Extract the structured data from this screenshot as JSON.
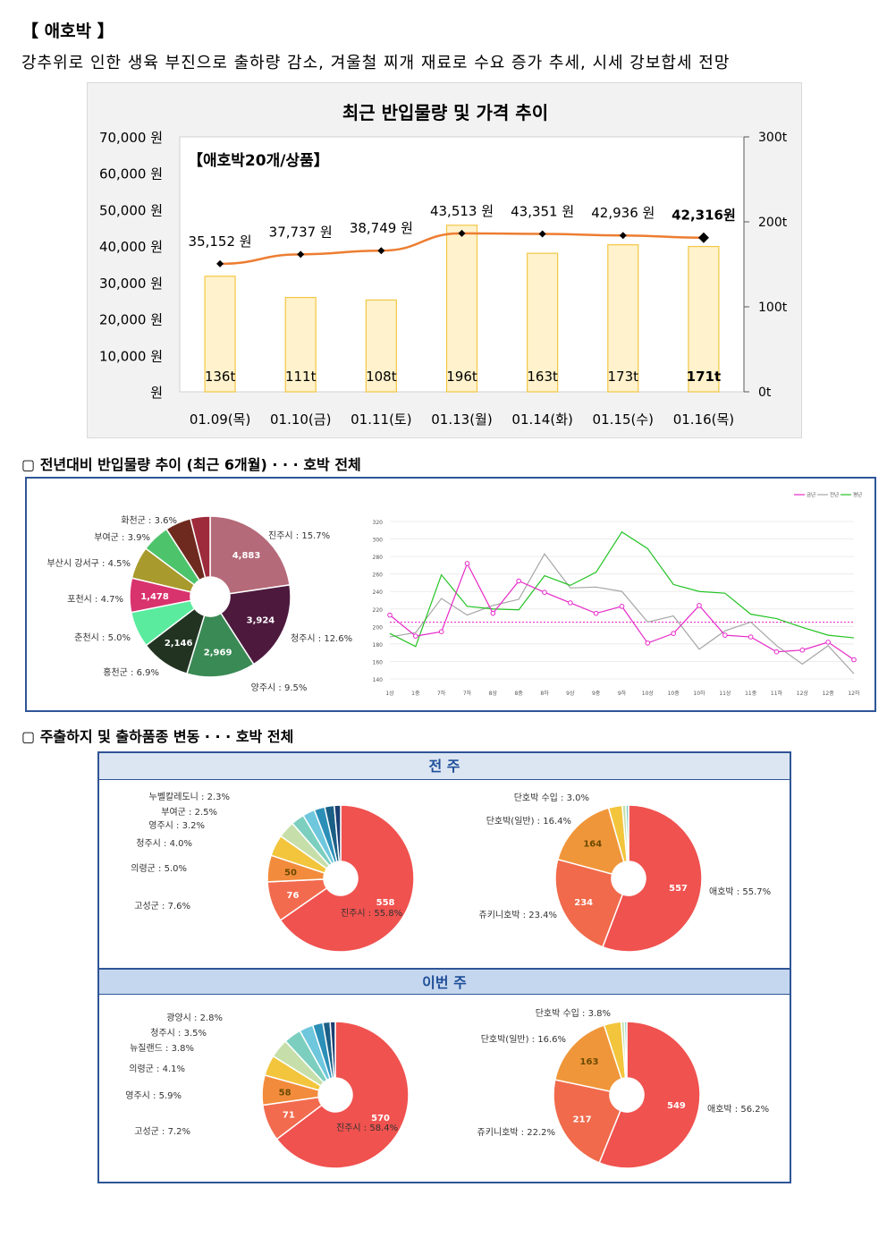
{
  "header": {
    "title": "【 애호박 】",
    "subtitle": "강추위로 인한 생육 부진으로 출하량 감소, 겨울철 찌개 재료로 수요 증가 추세, 시세 강보합세 전망"
  },
  "sections": {
    "trend_heading": "▢ 전년대비 반입물량 추이 (최근 6개월) · · · 호박 전체",
    "share_heading": "▢ 주출하지 및 출하품종 변동 · · · 호박 전체",
    "prev_week_label": "전 주",
    "this_week_label": "이번 주"
  },
  "chart_data": [
    {
      "type": "bar",
      "title": "최근 반입물량 및 가격 추이",
      "inset_label": "【애호박20개/상품】",
      "categories": [
        "01.09(목)",
        "01.10(금)",
        "01.11(토)",
        "01.13(월)",
        "01.14(화)",
        "01.15(수)",
        "01.16(목)"
      ],
      "series": [
        {
          "name": "",
          "axis": "right",
          "values": [
            136,
            111,
            108,
            196,
            163,
            173,
            171
          ],
          "labels": [
            "136t",
            "111t",
            "108t",
            "196t",
            "163t",
            "173t",
            "171t"
          ],
          "color": "#fff2cc",
          "stroke": "#f2c744"
        },
        {
          "name": "",
          "axis": "left",
          "type": "line",
          "values": [
            35152,
            37737,
            38749,
            43513,
            43351,
            42936,
            42316
          ],
          "labels": [
            "35,152 원",
            "37,737 원",
            "38,749 원",
            "43,513 원",
            "43,351 원",
            "42,936 원",
            "42,316원"
          ],
          "color": "#ed7d31"
        }
      ],
      "yticks_left": [
        "70,000 원",
        "60,000 원",
        "50,000 원",
        "40,000 원",
        "30,000 원",
        "20,000 원",
        "10,000 원",
        "원"
      ],
      "yticks_right": [
        "300t",
        "200t",
        "100t",
        "0t"
      ],
      "ylim_left": [
        0,
        70000
      ],
      "ylim_right": [
        0,
        300
      ]
    },
    {
      "type": "pie",
      "donut": true,
      "slices": [
        {
          "label": "진주시 : 15.7%",
          "value": 4883,
          "value_label": "4,883",
          "color": "#b56a79"
        },
        {
          "label": "청주시 : 12.6%",
          "value": 3924,
          "value_label": "3,924",
          "color": "#4d1a3e"
        },
        {
          "label": "양주시 : 9.5%",
          "value": 2969,
          "value_label": "2,969",
          "color": "#3a8a55"
        },
        {
          "label": "홍천군 : 6.9%",
          "value": 2146,
          "value_label": "2,146",
          "color": "#223322"
        },
        {
          "label": "춘천시 : 5.0%",
          "value": 1556,
          "value_label": "",
          "color": "#5aeb9e"
        },
        {
          "label": "포천시 : 4.7%",
          "value": 1478,
          "value_label": "1,478",
          "color": "#d9336e"
        },
        {
          "label": "부산시 강서구 : 4.5%",
          "value": 1400,
          "value_label": "",
          "color": "#a89a2c"
        },
        {
          "label": "부여군 : 3.9%",
          "value": 1213,
          "value_label": "",
          "color": "#4dc46b"
        },
        {
          "label": "화천군 : 3.6%",
          "value": 1120,
          "value_label": "",
          "color": "#6e2a1e"
        },
        {
          "label": "",
          "value": 850,
          "value_label": "",
          "color": "#9e2b3b"
        }
      ]
    },
    {
      "type": "line",
      "legend": [
        "금년",
        "전년",
        "평년"
      ],
      "legend_position": "top-right",
      "x": [
        "1상",
        "1중",
        "7하",
        "7하",
        "8상",
        "8중",
        "8하",
        "9상",
        "9중",
        "9하",
        "10상",
        "10중",
        "10하",
        "11상",
        "11중",
        "11하",
        "12상",
        "12중",
        "12하"
      ],
      "yticks": [
        "320",
        "300",
        "280",
        "260",
        "240",
        "220",
        "200",
        "180",
        "160",
        "140"
      ],
      "ylim": [
        140,
        320
      ],
      "reference_line": 205,
      "series": [
        {
          "name": "금년",
          "color": "#e629c8",
          "values": [
            213,
            189,
            194,
            272,
            215,
            252,
            239,
            227,
            215,
            223,
            181,
            192,
            224,
            190,
            188,
            171,
            173,
            182,
            162
          ]
        },
        {
          "name": "전년",
          "color": "#a6a6a6",
          "values": [
            188,
            193,
            232,
            213,
            224,
            231,
            283,
            244,
            245,
            240,
            205,
            212,
            174,
            195,
            205,
            178,
            157,
            178,
            146
          ]
        },
        {
          "name": "평년",
          "color": "#22c322",
          "values": [
            192,
            177,
            259,
            223,
            220,
            219,
            258,
            247,
            262,
            308,
            289,
            248,
            240,
            238,
            214,
            209,
            199,
            190,
            187
          ]
        }
      ]
    },
    {
      "type": "pie",
      "donut": true,
      "panel": "전 주",
      "slices": [
        {
          "label": "진주시 : 55.8%",
          "value": 558,
          "value_label": "558",
          "color": "#f0524f"
        },
        {
          "label": "고성군 : 7.6%",
          "value": 76,
          "value_label": "76",
          "color": "#f26b4f"
        },
        {
          "label": "의령군 : 5.0%",
          "value": 50,
          "value_label": "50",
          "color": "#f28c3c"
        },
        {
          "label": "청주시 : 4.0%",
          "value": 40,
          "value_label": "",
          "color": "#f2c53c"
        },
        {
          "label": "영주시 : 3.2%",
          "value": 32,
          "value_label": "",
          "color": "#c6dfaa"
        },
        {
          "label": "부여군 : 2.5%",
          "value": 25,
          "value_label": "",
          "color": "#7ccfbf"
        },
        {
          "label": "누벨칼레도니 : 2.3%",
          "value": 23,
          "value_label": "",
          "color": "#6ec7dd"
        },
        {
          "label": "",
          "value": 20,
          "value_label": "",
          "color": "#2b8fb8"
        },
        {
          "label": "",
          "value": 18,
          "value_label": "",
          "color": "#1a5f86"
        },
        {
          "label": "",
          "value": 12,
          "value_label": "",
          "color": "#1c3f73"
        }
      ]
    },
    {
      "type": "pie",
      "donut": true,
      "panel": "전 주",
      "slices": [
        {
          "label": "애호박 : 55.7%",
          "value": 557,
          "value_label": "557",
          "color": "#f0524f"
        },
        {
          "label": "쥬키니호박 : 23.4%",
          "value": 234,
          "value_label": "234",
          "color": "#f06a4b"
        },
        {
          "label": "단호박(일반) : 16.4%",
          "value": 164,
          "value_label": "164",
          "color": "#f0963a"
        },
        {
          "label": "단호박 수입 : 3.0%",
          "value": 30,
          "value_label": "",
          "color": "#f2c53c"
        },
        {
          "label": "",
          "value": 8,
          "value_label": "",
          "color": "#c6dfaa"
        },
        {
          "label": "",
          "value": 6,
          "value_label": "",
          "color": "#7ccfbf"
        }
      ]
    },
    {
      "type": "pie",
      "donut": true,
      "panel": "이번 주",
      "slices": [
        {
          "label": "진주시 : 58.4%",
          "value": 570,
          "value_label": "570",
          "color": "#f0524f"
        },
        {
          "label": "고성군 : 7.2%",
          "value": 71,
          "value_label": "71",
          "color": "#f26b4f"
        },
        {
          "label": "영주시 : 5.9%",
          "value": 58,
          "value_label": "58",
          "color": "#f28c3c"
        },
        {
          "label": "의령군 : 4.1%",
          "value": 40,
          "value_label": "",
          "color": "#f2c53c"
        },
        {
          "label": "뉴질랜드 : 3.8%",
          "value": 37,
          "value_label": "",
          "color": "#c6dfaa"
        },
        {
          "label": "청주시 : 3.5%",
          "value": 34,
          "value_label": "",
          "color": "#7ccfbf"
        },
        {
          "label": "광양시 : 2.8%",
          "value": 27,
          "value_label": "",
          "color": "#6ec7dd"
        },
        {
          "label": "",
          "value": 20,
          "value_label": "",
          "color": "#2b8fb8"
        },
        {
          "label": "",
          "value": 14,
          "value_label": "",
          "color": "#1a5f86"
        },
        {
          "label": "",
          "value": 10,
          "value_label": "",
          "color": "#1c3f73"
        }
      ]
    },
    {
      "type": "pie",
      "donut": true,
      "panel": "이번 주",
      "slices": [
        {
          "label": "애호박 : 56.2%",
          "value": 549,
          "value_label": "549",
          "color": "#f0524f"
        },
        {
          "label": "쥬키니호박 : 22.2%",
          "value": 217,
          "value_label": "217",
          "color": "#f06a4b"
        },
        {
          "label": "단호박(일반) : 16.6%",
          "value": 163,
          "value_label": "163",
          "color": "#f0963a"
        },
        {
          "label": "단호박 수입 : 3.8%",
          "value": 37,
          "value_label": "",
          "color": "#f2c53c"
        },
        {
          "label": "",
          "value": 7,
          "value_label": "",
          "color": "#c6dfaa"
        },
        {
          "label": "",
          "value": 5,
          "value_label": "",
          "color": "#7ccfbf"
        }
      ]
    }
  ]
}
